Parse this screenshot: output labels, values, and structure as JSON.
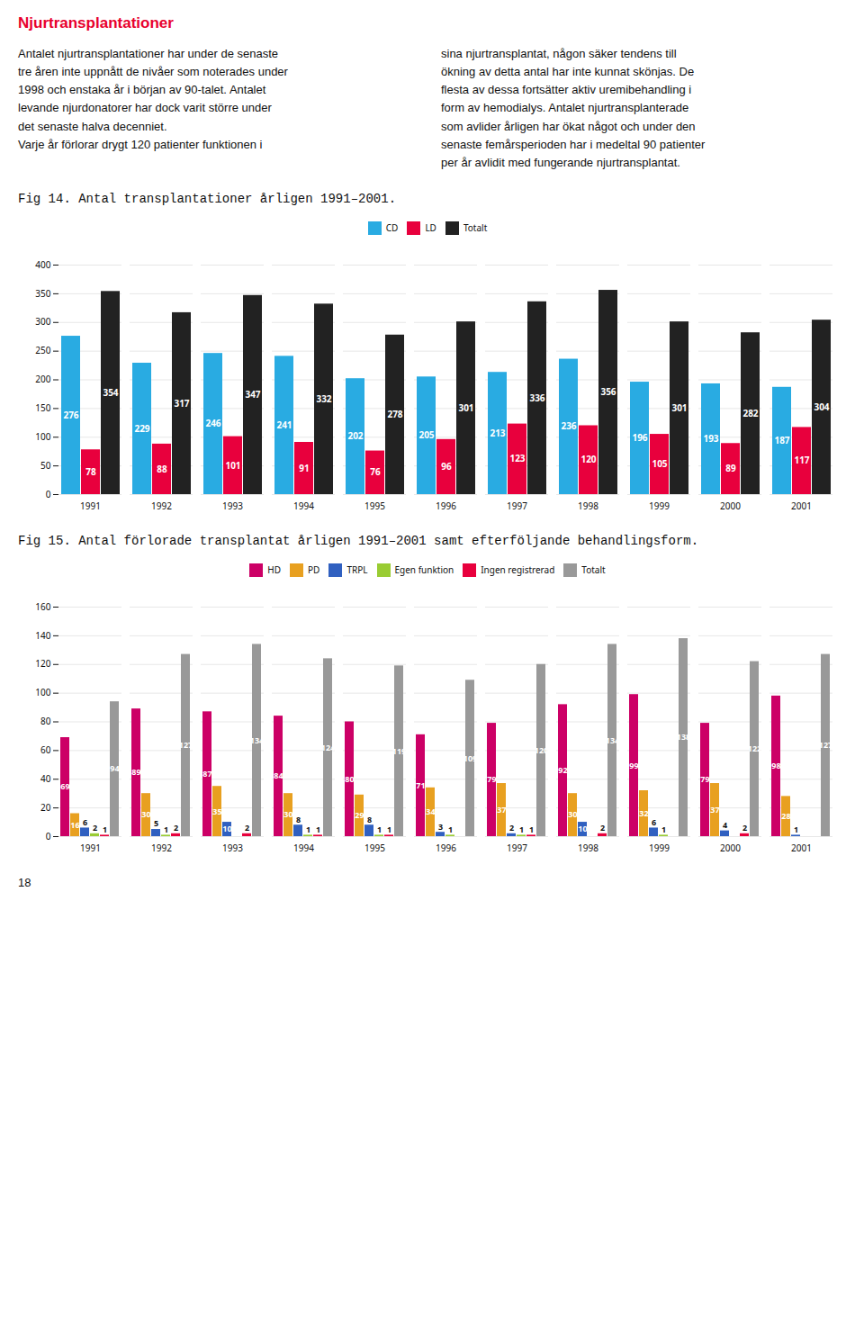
{
  "title": "Njurtransplantationer",
  "paragraph_left_lines": [
    "Antalet njurtransplantationer har under de senaste",
    "tre åren inte uppnått de nivåer som noterades under",
    "1998 och enstaka år i början av 90-talet. Antalet",
    "levande njurdonatorer har dock varit större under",
    "det senaste halva decenniet.",
    "Varje år förlorar drygt 120 patienter funktionen i"
  ],
  "paragraph_right_lines": [
    "sina njurtransplantat, någon säker tendens till",
    "ökning av detta antal har inte kunnat skönjas. De",
    "flesta av dessa fortsätter aktiv uremibehandling i",
    "form av hemodialys. Antalet njurtransplanterade",
    "som avlider årligen har ökat något och under den",
    "senaste femårsperioden har i medeltal 90 patienter",
    "per år avlidit med fungerande njurtransplantat."
  ],
  "page_number": "18",
  "chart_data": [
    {
      "type": "bar",
      "title": "Fig 14. Antal transplantationer årligen 1991–2001.",
      "categories": [
        1991,
        1992,
        1993,
        1994,
        1995,
        1996,
        1997,
        1998,
        1999,
        2000,
        2001
      ],
      "series": [
        {
          "name": "CD",
          "color": "#29abe2",
          "values": [
            276,
            229,
            246,
            241,
            202,
            205,
            213,
            236,
            196,
            193,
            187
          ]
        },
        {
          "name": "LD",
          "color": "#e8003d",
          "values": [
            78,
            88,
            101,
            91,
            76,
            96,
            123,
            120,
            105,
            89,
            117
          ]
        },
        {
          "name": "Totalt",
          "color": "#222222",
          "values": [
            354,
            317,
            347,
            332,
            278,
            301,
            336,
            356,
            301,
            282,
            304
          ]
        }
      ],
      "ylim": [
        0,
        400
      ],
      "yticks": [
        0,
        50,
        100,
        150,
        200,
        250,
        300,
        350,
        400
      ],
      "grid": true,
      "legend": "top",
      "data_labels": true
    },
    {
      "type": "bar",
      "title": "Fig 15. Antal förlorade transplantat årligen 1991–2001 samt efterföljande behandlingsform.",
      "categories": [
        1991,
        1992,
        1993,
        1994,
        1995,
        1996,
        1997,
        1998,
        1999,
        2000,
        2001
      ],
      "series": [
        {
          "name": "HD",
          "color": "#cc0066",
          "values": [
            69,
            89,
            87,
            84,
            80,
            71,
            79,
            92,
            99,
            79,
            98
          ]
        },
        {
          "name": "PD",
          "color": "#e8a020",
          "values": [
            16,
            30,
            35,
            30,
            29,
            34,
            37,
            30,
            32,
            37,
            28
          ]
        },
        {
          "name": "TRPL",
          "color": "#3060c0",
          "values": [
            6,
            5,
            10,
            8,
            8,
            3,
            2,
            10,
            6,
            4,
            1
          ]
        },
        {
          "name": "Egen funktion",
          "color": "#99cc33",
          "values": [
            2,
            1,
            0,
            1,
            1,
            1,
            1,
            0,
            1,
            0,
            0
          ]
        },
        {
          "name": "Ingen registrerad",
          "color": "#e8003d",
          "values": [
            1,
            2,
            2,
            1,
            1,
            0,
            1,
            2,
            0,
            2,
            0
          ]
        },
        {
          "name": "Totalt",
          "color": "#999999",
          "values": [
            94,
            127,
            134,
            124,
            119,
            109,
            120,
            134,
            138,
            122,
            127
          ]
        }
      ],
      "ylim": [
        0,
        160
      ],
      "yticks": [
        0,
        20,
        40,
        60,
        80,
        100,
        120,
        140,
        160
      ],
      "grid": true,
      "legend": "top",
      "data_labels": true
    }
  ]
}
